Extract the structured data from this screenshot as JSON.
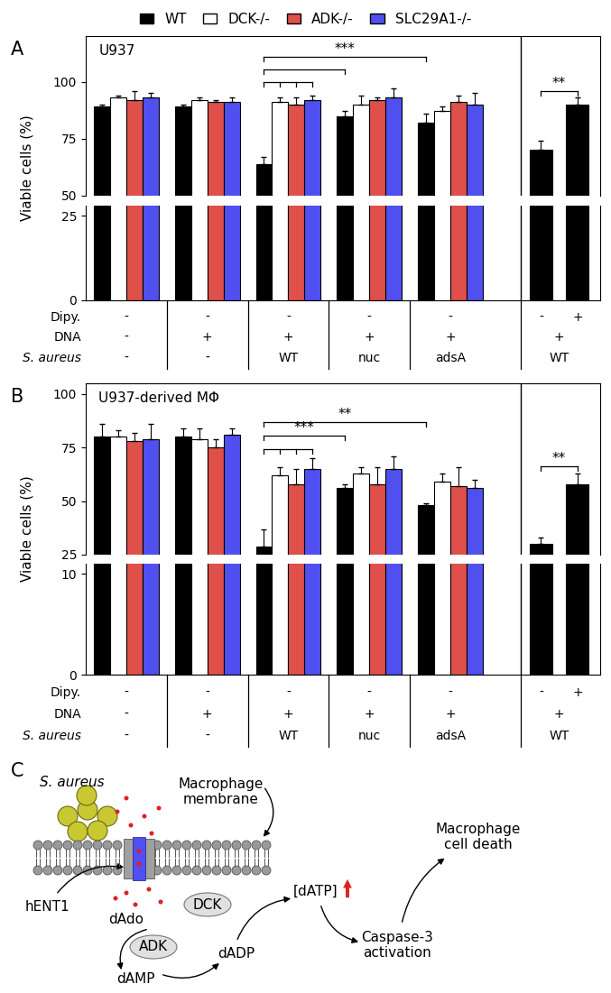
{
  "legend": "upper center",
  "legend_entries": [
    {
      "name": "WT",
      "color": "#000000"
    },
    {
      "name": "DCK-/-",
      "color": "#ffffff"
    },
    {
      "name": "ADK-/-",
      "color": "#e0504a"
    },
    {
      "name": "SLC29A1-/-",
      "color": "#5050f0"
    }
  ],
  "chart_data": [
    {
      "type": "bar",
      "panel": "A",
      "title": "U937",
      "y_label": "Viable cells (%)",
      "axis_segments": [
        {
          "ylim": [
            0,
            28
          ],
          "yticks": [
            0,
            25
          ]
        },
        {
          "ylim": [
            50,
            120
          ],
          "yticks": [
            50,
            75,
            100
          ]
        }
      ],
      "series": [
        {
          "name": "WT",
          "values": [
            89,
            89,
            64,
            85,
            82
          ],
          "errors": [
            1,
            1,
            3,
            2,
            4
          ]
        },
        {
          "name": "DCK-/-",
          "values": [
            93,
            92,
            91,
            90,
            87
          ],
          "errors": [
            1,
            1,
            2,
            4,
            2
          ]
        },
        {
          "name": "ADK-/-",
          "values": [
            92,
            91,
            90,
            92,
            91
          ],
          "errors": [
            4,
            1,
            3,
            1,
            3
          ]
        },
        {
          "name": "SLC29A1-/-",
          "values": [
            93,
            91,
            92,
            93,
            90
          ],
          "errors": [
            2,
            2,
            2,
            4,
            5
          ]
        }
      ],
      "condition_rows": [
        {
          "label": "Dipy.",
          "values": [
            "-",
            "-",
            "-",
            "-",
            "-"
          ]
        },
        {
          "label": "DNA",
          "values": [
            "-",
            "+",
            "+",
            "+",
            "+"
          ]
        },
        {
          "label": "S. aureus",
          "values": [
            "-",
            "-",
            "WT",
            "nuc",
            "adsA"
          ]
        }
      ],
      "significance": [
        {
          "label": "***",
          "ref": [
            2,
            0
          ],
          "targets": [
            [
              2,
              1
            ],
            [
              2,
              2
            ],
            [
              2,
              3
            ],
            [
              3,
              0
            ],
            [
              4,
              0
            ]
          ]
        }
      ],
      "dipyridamole": {
        "series": "WT",
        "values": [
          70,
          90
        ],
        "errors": [
          4,
          3
        ],
        "significance": "**",
        "condition_rows": [
          {
            "label": "Dipy.",
            "values": [
              "-",
              "+"
            ]
          },
          {
            "label": "DNA",
            "values": [
              "+"
            ]
          },
          {
            "label": "S. aureus",
            "values": [
              "WT"
            ]
          }
        ]
      }
    },
    {
      "type": "bar",
      "panel": "B",
      "title": "U937-derived MΦ",
      "y_label": "Viable cells (%)",
      "axis_segments": [
        {
          "ylim": [
            0,
            11
          ],
          "yticks": [
            0,
            10
          ]
        },
        {
          "ylim": [
            25,
            105
          ],
          "yticks": [
            25,
            50,
            75,
            100
          ]
        }
      ],
      "series": [
        {
          "name": "WT",
          "values": [
            80,
            80,
            29,
            56,
            48
          ],
          "errors": [
            6,
            4,
            8,
            2,
            1
          ]
        },
        {
          "name": "DCK-/-",
          "values": [
            80,
            79,
            62,
            63,
            59
          ],
          "errors": [
            3,
            5,
            4,
            3,
            4
          ]
        },
        {
          "name": "ADK-/-",
          "values": [
            78,
            75,
            58,
            58,
            57
          ],
          "errors": [
            4,
            4,
            7,
            8,
            9
          ]
        },
        {
          "name": "SLC29A1-/-",
          "values": [
            79,
            81,
            65,
            65,
            56
          ],
          "errors": [
            7,
            3,
            5,
            6,
            4
          ]
        }
      ],
      "condition_rows": [
        {
          "label": "Dipy.",
          "values": [
            "-",
            "-",
            "-",
            "-",
            "-"
          ]
        },
        {
          "label": "DNA",
          "values": [
            "-",
            "+",
            "+",
            "+",
            "+"
          ]
        },
        {
          "label": "S. aureus",
          "values": [
            "-",
            "-",
            "WT",
            "nuc",
            "adsA"
          ]
        }
      ],
      "significance": [
        {
          "label": "***",
          "ref": [
            2,
            0
          ],
          "targets": [
            [
              2,
              1
            ],
            [
              2,
              2
            ],
            [
              2,
              3
            ],
            [
              3,
              0
            ]
          ]
        },
        {
          "label": "**",
          "ref": [
            2,
            0
          ],
          "targets": [
            [
              4,
              0
            ]
          ]
        }
      ],
      "dipyridamole": {
        "series": "WT",
        "values": [
          30,
          58
        ],
        "errors": [
          3,
          5
        ],
        "significance": "**",
        "condition_rows": [
          {
            "label": "Dipy.",
            "values": [
              "-",
              "+"
            ]
          },
          {
            "label": "DNA",
            "values": [
              "+"
            ]
          },
          {
            "label": "S. aureus",
            "values": [
              "WT"
            ]
          }
        ]
      }
    }
  ],
  "diagram": {
    "panel": "C",
    "labels": {
      "bacterium": "S. aureus",
      "membrane": "Macrophage\nmembrane",
      "transporter": "hENT1",
      "nucleoside": "dAdo",
      "kinase1": "DCK",
      "kinase2": "ADK",
      "monophosphate": "dAMP",
      "diphosphate": "dADP",
      "triphosphate": "[dATP]",
      "caspase": "Caspase-3\nactivation",
      "outcome": "Macrophage\ncell death"
    }
  }
}
